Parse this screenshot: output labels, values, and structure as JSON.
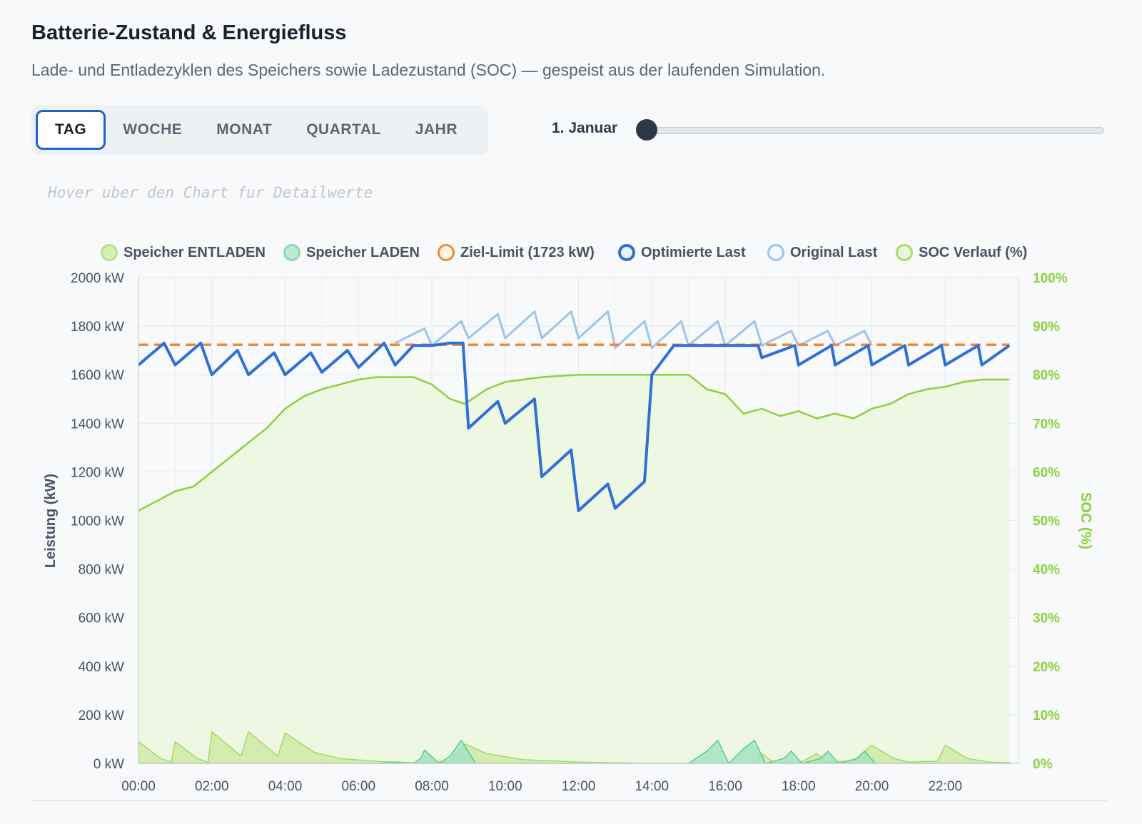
{
  "header": {
    "title": "Batterie-Zustand & Energiefluss",
    "subtitle": "Lade- und Entladezyklen des Speichers sowie Ladezustand (SOC) — gespeist aus der laufenden Simulation."
  },
  "tabs": [
    {
      "label": "TAG",
      "active": true
    },
    {
      "label": "WOCHE",
      "active": false
    },
    {
      "label": "MONAT",
      "active": false
    },
    {
      "label": "QUARTAL",
      "active": false
    },
    {
      "label": "JAHR",
      "active": false
    }
  ],
  "slider": {
    "date_label": "1. Januar",
    "value": 0
  },
  "hint": "Hover uber den Chart fur Detailwerte",
  "colors": {
    "discharge": "#a3d96a",
    "charge": "#6fd6a3",
    "limit": "#f08a34",
    "optimized": "#2f6fd6",
    "original": "#9cc4ec",
    "soc": "#8bd13a"
  },
  "chart_data": {
    "type": "line",
    "title": "",
    "xlabel": "",
    "ylabel": "Leistung (kW)",
    "y2label": "SOC (%)",
    "ylim": [
      0,
      2000
    ],
    "y2lim": [
      0,
      100
    ],
    "grid": true,
    "legend_position": "top",
    "x_ticks": [
      "00:00",
      "02:00",
      "04:00",
      "06:00",
      "08:00",
      "10:00",
      "12:00",
      "14:00",
      "16:00",
      "18:00",
      "20:00",
      "22:00"
    ],
    "y_ticks": [
      "0 kW",
      "200 kW",
      "400 kW",
      "600 kW",
      "800 kW",
      "1000 kW",
      "1200 kW",
      "1400 kW",
      "1600 kW",
      "1800 kW",
      "2000 kW"
    ],
    "y2_ticks": [
      "0%",
      "10%",
      "20%",
      "30%",
      "40%",
      "50%",
      "60%",
      "70%",
      "80%",
      "90%",
      "100%"
    ],
    "x_range_hours": [
      0,
      23.75
    ],
    "limit_kw": 1723,
    "series": [
      {
        "name": "Speicher ENTLADEN",
        "kind": "area",
        "points": [
          [
            0,
            90
          ],
          [
            0.6,
            20
          ],
          [
            0.9,
            5
          ],
          [
            1,
            90
          ],
          [
            1.6,
            20
          ],
          [
            1.9,
            5
          ],
          [
            2,
            130
          ],
          [
            2.8,
            30
          ],
          [
            3,
            130
          ],
          [
            3.8,
            30
          ],
          [
            4,
            125
          ],
          [
            4.8,
            45
          ],
          [
            5.5,
            20
          ],
          [
            6.5,
            8
          ],
          [
            7.5,
            3
          ],
          [
            8.5,
            10
          ],
          [
            8.9,
            80
          ],
          [
            9.5,
            40
          ],
          [
            10.5,
            15
          ],
          [
            12,
            5
          ],
          [
            14,
            0
          ],
          [
            16,
            0
          ],
          [
            16.8,
            0
          ],
          [
            17,
            40
          ],
          [
            17.3,
            5
          ],
          [
            18,
            0
          ],
          [
            18.5,
            40
          ],
          [
            18.8,
            5
          ],
          [
            19.5,
            10
          ],
          [
            20,
            75
          ],
          [
            20.6,
            20
          ],
          [
            21,
            5
          ],
          [
            21.8,
            10
          ],
          [
            22,
            75
          ],
          [
            22.6,
            20
          ],
          [
            23.2,
            5
          ],
          [
            23.75,
            3
          ]
        ]
      },
      {
        "name": "Speicher LADEN",
        "kind": "area",
        "points": [
          [
            0,
            0
          ],
          [
            6.5,
            0
          ],
          [
            7,
            5
          ],
          [
            7.5,
            0
          ],
          [
            7.7,
            20
          ],
          [
            7.8,
            55
          ],
          [
            8.2,
            0
          ],
          [
            8.5,
            30
          ],
          [
            8.8,
            95
          ],
          [
            9.2,
            0
          ],
          [
            15,
            0
          ],
          [
            15.5,
            50
          ],
          [
            15.8,
            95
          ],
          [
            16.1,
            0
          ],
          [
            16.5,
            60
          ],
          [
            16.8,
            95
          ],
          [
            17.1,
            0
          ],
          [
            17.6,
            20
          ],
          [
            17.8,
            50
          ],
          [
            18.1,
            0
          ],
          [
            18.6,
            20
          ],
          [
            18.8,
            50
          ],
          [
            19.1,
            0
          ],
          [
            19.6,
            20
          ],
          [
            19.8,
            50
          ],
          [
            20.1,
            0
          ],
          [
            23.75,
            0
          ]
        ]
      },
      {
        "name": "Ziel-Limit (1723 kW)",
        "kind": "line",
        "points": [
          [
            0,
            1723
          ],
          [
            23.75,
            1723
          ]
        ]
      },
      {
        "name": "Optimierte Last",
        "kind": "line",
        "points": [
          [
            0,
            1640
          ],
          [
            0.7,
            1730
          ],
          [
            1,
            1640
          ],
          [
            1.7,
            1730
          ],
          [
            2,
            1600
          ],
          [
            2.7,
            1700
          ],
          [
            3,
            1600
          ],
          [
            3.7,
            1690
          ],
          [
            4,
            1600
          ],
          [
            4.7,
            1690
          ],
          [
            5,
            1610
          ],
          [
            5.7,
            1700
          ],
          [
            6,
            1630
          ],
          [
            6.7,
            1730
          ],
          [
            7,
            1640
          ],
          [
            7.5,
            1720
          ],
          [
            8,
            1720
          ],
          [
            8.5,
            1730
          ],
          [
            8.85,
            1730
          ],
          [
            9,
            1380
          ],
          [
            9.8,
            1490
          ],
          [
            10,
            1400
          ],
          [
            10.8,
            1500
          ],
          [
            11,
            1180
          ],
          [
            11.8,
            1290
          ],
          [
            12,
            1040
          ],
          [
            12.8,
            1150
          ],
          [
            13,
            1050
          ],
          [
            13.8,
            1160
          ],
          [
            14,
            1600
          ],
          [
            14.6,
            1720
          ],
          [
            15,
            1720
          ],
          [
            16.9,
            1720
          ],
          [
            17,
            1670
          ],
          [
            17.9,
            1720
          ],
          [
            18,
            1640
          ],
          [
            18.9,
            1720
          ],
          [
            19,
            1640
          ],
          [
            19.9,
            1720
          ],
          [
            20,
            1640
          ],
          [
            20.9,
            1720
          ],
          [
            21,
            1640
          ],
          [
            21.9,
            1720
          ],
          [
            22,
            1640
          ],
          [
            22.9,
            1720
          ],
          [
            23,
            1640
          ],
          [
            23.75,
            1720
          ]
        ]
      },
      {
        "name": "Original Last",
        "kind": "line",
        "points": [
          [
            7,
            1730
          ],
          [
            7.8,
            1790
          ],
          [
            8,
            1720
          ],
          [
            8.8,
            1820
          ],
          [
            9,
            1750
          ],
          [
            9.8,
            1850
          ],
          [
            10,
            1750
          ],
          [
            10.8,
            1860
          ],
          [
            11,
            1750
          ],
          [
            11.8,
            1860
          ],
          [
            12,
            1750
          ],
          [
            12.8,
            1860
          ],
          [
            13,
            1710
          ],
          [
            13.8,
            1820
          ],
          [
            14,
            1710
          ],
          [
            14.8,
            1820
          ],
          [
            15,
            1720
          ],
          [
            15.8,
            1820
          ],
          [
            16,
            1720
          ],
          [
            16.8,
            1820
          ],
          [
            17,
            1720
          ],
          [
            17.8,
            1780
          ],
          [
            18,
            1720
          ],
          [
            18.8,
            1780
          ],
          [
            19,
            1720
          ],
          [
            19.8,
            1780
          ],
          [
            20,
            1720
          ]
        ]
      },
      {
        "name": "SOC Verlauf (%)",
        "kind": "area",
        "axis": "right",
        "points": [
          [
            0,
            52
          ],
          [
            0.5,
            54
          ],
          [
            1,
            56
          ],
          [
            1.5,
            57
          ],
          [
            2,
            60
          ],
          [
            2.5,
            63
          ],
          [
            3,
            66
          ],
          [
            3.5,
            69
          ],
          [
            4,
            73
          ],
          [
            4.5,
            75.5
          ],
          [
            5,
            77
          ],
          [
            5.5,
            78
          ],
          [
            6,
            79
          ],
          [
            6.5,
            79.5
          ],
          [
            7,
            79.5
          ],
          [
            7.5,
            79.5
          ],
          [
            8,
            78
          ],
          [
            8.5,
            75
          ],
          [
            8.9,
            74
          ],
          [
            9.5,
            77
          ],
          [
            10,
            78.5
          ],
          [
            11,
            79.5
          ],
          [
            12,
            80
          ],
          [
            14,
            80
          ],
          [
            15,
            80
          ],
          [
            15.5,
            77
          ],
          [
            16,
            76
          ],
          [
            16.5,
            72
          ],
          [
            17,
            73
          ],
          [
            17.5,
            71.5
          ],
          [
            18,
            72.5
          ],
          [
            18.5,
            71
          ],
          [
            19,
            72
          ],
          [
            19.5,
            71
          ],
          [
            20,
            73
          ],
          [
            20.5,
            74
          ],
          [
            21,
            76
          ],
          [
            21.5,
            77
          ],
          [
            22,
            77.5
          ],
          [
            22.5,
            78.5
          ],
          [
            23,
            79
          ],
          [
            23.75,
            79
          ]
        ]
      }
    ]
  }
}
